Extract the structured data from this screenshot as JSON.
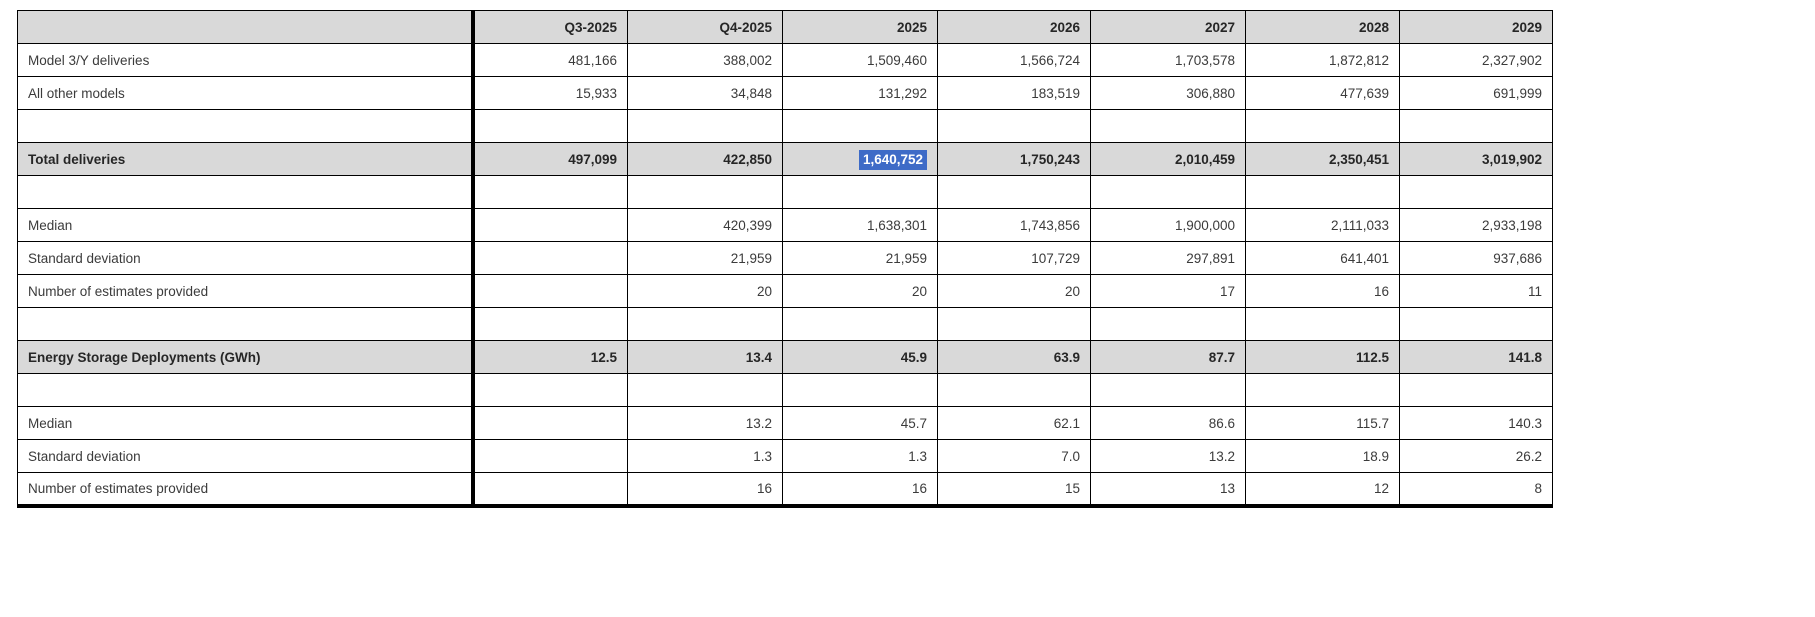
{
  "colors": {
    "header_bg": "#d9d9d9",
    "section_row_bg": "#d9d9d9",
    "border": "#000000",
    "text": "#3b3b3b",
    "bold_text": "#262626",
    "selection_bg": "#3e6bc7",
    "selection_text": "#ffffff"
  },
  "chart_data": {
    "type": "table",
    "columns": [
      "",
      "Q3-2025",
      "Q4-2025",
      "2025",
      "2026",
      "2027",
      "2028",
      "2029"
    ],
    "rows": [
      {
        "label": "Model 3/Y deliveries",
        "type": "data",
        "values": [
          "481,166",
          "388,002",
          "1,509,460",
          "1,566,724",
          "1,703,578",
          "1,872,812",
          "2,327,902"
        ]
      },
      {
        "label": "All other models",
        "type": "data",
        "values": [
          "15,933",
          "34,848",
          "131,292",
          "183,519",
          "306,880",
          "477,639",
          "691,999"
        ]
      },
      {
        "label": "",
        "type": "spacer",
        "values": []
      },
      {
        "label": "Total deliveries",
        "type": "section",
        "highlight_col": 2,
        "values": [
          "497,099",
          "422,850",
          "1,640,752",
          "1,750,243",
          "2,010,459",
          "2,350,451",
          "3,019,902"
        ]
      },
      {
        "label": "",
        "type": "spacer",
        "values": []
      },
      {
        "label": "Median",
        "type": "data",
        "values": [
          "",
          "420,399",
          "1,638,301",
          "1,743,856",
          "1,900,000",
          "2,111,033",
          "2,933,198"
        ]
      },
      {
        "label": "Standard deviation",
        "type": "data",
        "values": [
          "",
          "21,959",
          "21,959",
          "107,729",
          "297,891",
          "641,401",
          "937,686"
        ]
      },
      {
        "label": "Number of estimates provided",
        "type": "data",
        "values": [
          "",
          "20",
          "20",
          "20",
          "17",
          "16",
          "11"
        ]
      },
      {
        "label": "",
        "type": "spacer",
        "values": []
      },
      {
        "label": "Energy Storage Deployments (GWh)",
        "type": "section",
        "values": [
          "12.5",
          "13.4",
          "45.9",
          "63.9",
          "87.7",
          "112.5",
          "141.8"
        ]
      },
      {
        "label": "",
        "type": "spacer",
        "values": []
      },
      {
        "label": "Median",
        "type": "data",
        "values": [
          "",
          "13.2",
          "45.7",
          "62.1",
          "86.6",
          "115.7",
          "140.3"
        ]
      },
      {
        "label": "Standard deviation",
        "type": "data",
        "values": [
          "",
          "1.3",
          "1.3",
          "7.0",
          "13.2",
          "18.9",
          "26.2"
        ]
      },
      {
        "label": "Number of estimates provided",
        "type": "data",
        "values": [
          "",
          "16",
          "16",
          "15",
          "13",
          "12",
          "8"
        ]
      }
    ]
  }
}
